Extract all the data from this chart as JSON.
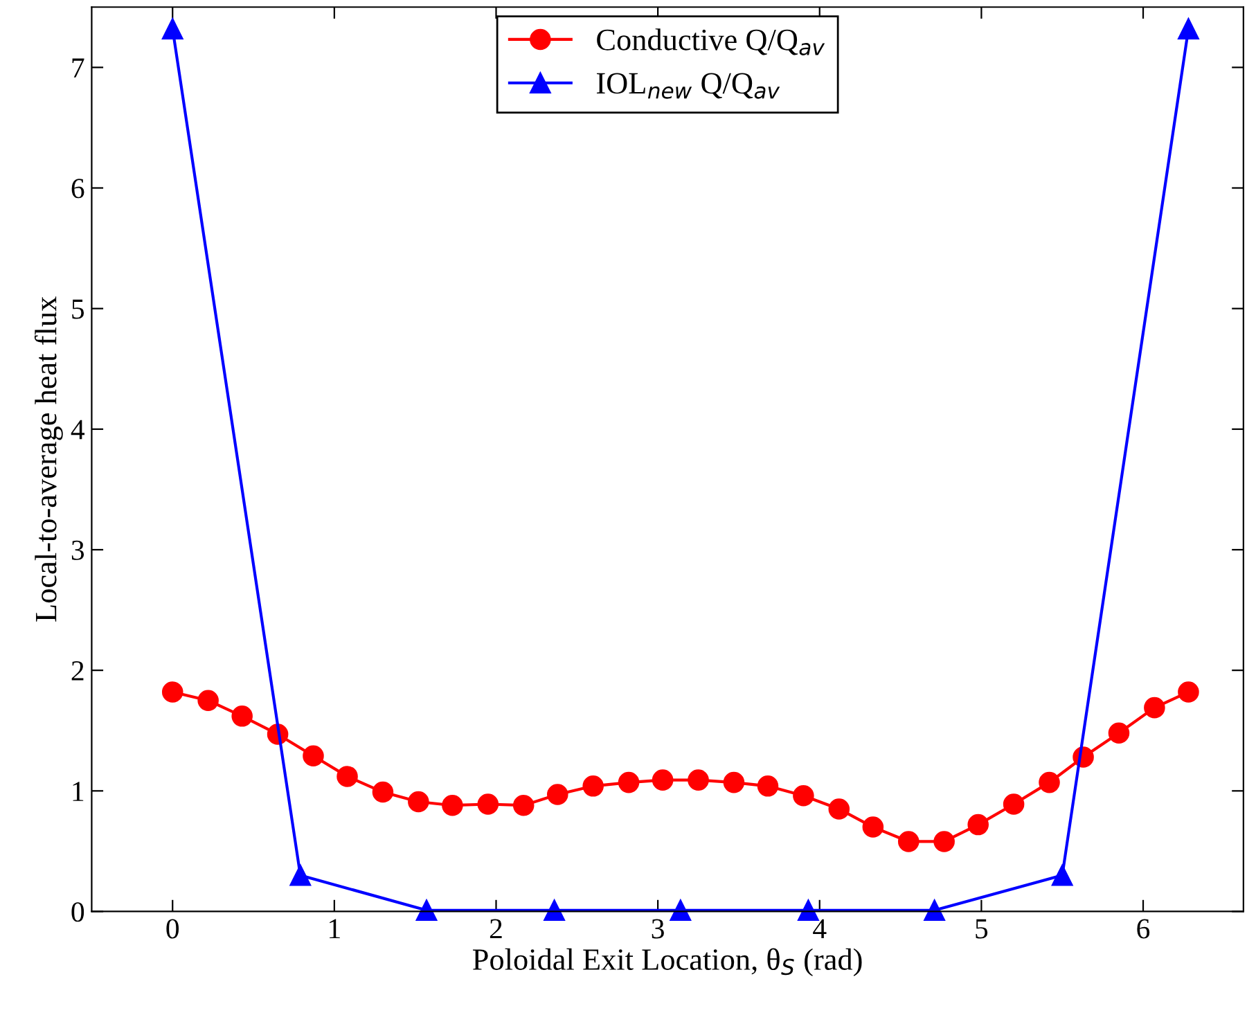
{
  "chart_data": {
    "type": "line",
    "xlabel": "Poloidal Exit Location, θ$_{S}$ (rad)",
    "ylabel": "Local-to-average heat flux",
    "xlim": [
      -0.5,
      6.62
    ],
    "xticks": [
      0,
      1,
      2,
      3,
      4,
      5,
      6
    ],
    "ylim": [
      0,
      7.5
    ],
    "yticks": [
      0,
      1,
      2,
      3,
      4,
      5,
      6,
      7
    ],
    "grid": false,
    "legend": "top",
    "line_style": "solid",
    "series": [
      {
        "name": "Conductive Q/Q$_{av}$",
        "color": "#ff0000",
        "marker": "circle",
        "x": [
          0,
          0.22,
          0.43,
          0.65,
          0.87,
          1.08,
          1.3,
          1.52,
          1.73,
          1.95,
          2.17,
          2.38,
          2.6,
          2.82,
          3.03,
          3.25,
          3.47,
          3.68,
          3.9,
          4.12,
          4.33,
          4.55,
          4.77,
          4.98,
          5.2,
          5.42,
          5.63,
          5.85,
          6.07,
          6.28
        ],
        "values": [
          1.82,
          1.75,
          1.62,
          1.47,
          1.29,
          1.12,
          0.99,
          0.91,
          0.88,
          0.89,
          0.88,
          0.97,
          1.04,
          1.07,
          1.09,
          1.09,
          1.07,
          1.04,
          0.96,
          0.85,
          0.7,
          0.58,
          0.58,
          0.72,
          0.89,
          1.07,
          1.28,
          1.48,
          1.69,
          1.82
        ]
      },
      {
        "name": "IOL$_{new}$ Q/Q$_{av}$",
        "color": "#0000ff",
        "marker": "triangle",
        "x": [
          0,
          0.79,
          1.57,
          2.36,
          3.14,
          3.93,
          4.71,
          5.5,
          6.28
        ],
        "values": [
          7.32,
          0.3,
          0.01,
          0.01,
          0.01,
          0.01,
          0.01,
          0.3,
          7.32
        ]
      }
    ]
  }
}
